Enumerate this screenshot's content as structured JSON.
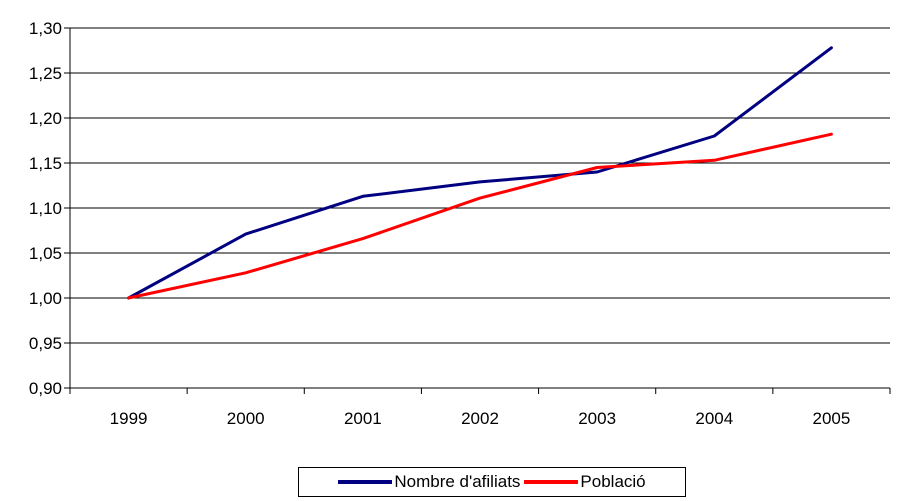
{
  "chart_data": {
    "type": "line",
    "title": "",
    "xlabel": "",
    "ylabel": "",
    "categories": [
      "1999",
      "2000",
      "2001",
      "2002",
      "2003",
      "2004",
      "2005"
    ],
    "ylim": [
      0.9,
      1.3
    ],
    "yticks": [
      "0,90",
      "0,95",
      "1,00",
      "1,05",
      "1,10",
      "1,15",
      "1,20",
      "1,25",
      "1,30"
    ],
    "grid": "horizontal",
    "legend_position": "bottom",
    "series": [
      {
        "name": "Nombre d'afiliats",
        "color": "#000080",
        "values": [
          1.0,
          1.071,
          1.113,
          1.129,
          1.14,
          1.18,
          1.278
        ]
      },
      {
        "name": "Població",
        "color": "#ff0000",
        "values": [
          1.0,
          1.028,
          1.066,
          1.111,
          1.145,
          1.153,
          1.182
        ]
      }
    ]
  }
}
